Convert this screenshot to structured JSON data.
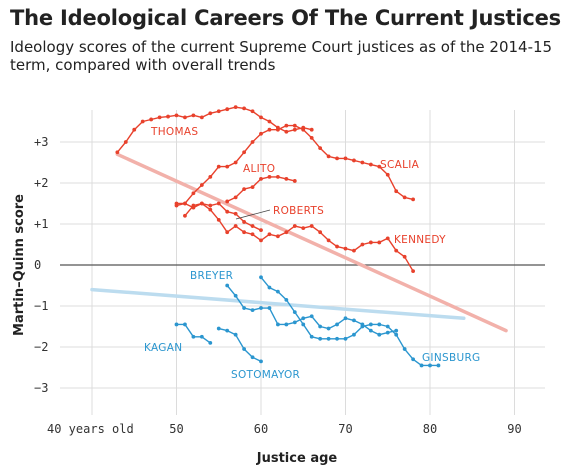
{
  "title": "The Ideological Careers Of The Current Justices",
  "subtitle": "Ideology scores of the current Supreme Court justices as of the 2014-15 term, compared with overall trends",
  "colors": {
    "conservative": "#e8412c",
    "liberal": "#2b96cf",
    "trend_conservative": "#f2b1aa",
    "trend_liberal": "#bcdcef",
    "grid": "#dcdcdc",
    "zero": "#555555"
  },
  "chart_data": {
    "type": "line",
    "title": "The Ideological Careers Of The Current Justices",
    "xlabel": "Justice age",
    "ylabel": "Martin–Quinn score",
    "xlim": [
      40,
      93
    ],
    "ylim": [
      -3.4,
      4.2
    ],
    "x_ticks": [
      40,
      50,
      60,
      70,
      80,
      90
    ],
    "x_tick_labels": [
      "40 years old",
      "50",
      "60",
      "70",
      "80",
      "90"
    ],
    "y_ticks": [
      -3,
      -2,
      -1,
      0,
      1,
      2,
      3
    ],
    "y_tick_labels": [
      "−3",
      "−2",
      "−1",
      "0",
      "+1",
      "+2",
      "+3"
    ],
    "grid": true,
    "series": [
      {
        "name": "THOMAS",
        "group": "conservative",
        "x": [
          43,
          44,
          45,
          46,
          47,
          48,
          49,
          50,
          51,
          52,
          53,
          54,
          55,
          56,
          57,
          58,
          59,
          60,
          61,
          62,
          63,
          64,
          65,
          66
        ],
        "y": [
          2.75,
          3.0,
          3.3,
          3.5,
          3.55,
          3.6,
          3.62,
          3.65,
          3.6,
          3.65,
          3.6,
          3.7,
          3.75,
          3.8,
          3.85,
          3.82,
          3.75,
          3.6,
          3.5,
          3.35,
          3.25,
          3.3,
          3.35,
          3.3
        ]
      },
      {
        "name": "SCALIA",
        "group": "conservative",
        "x": [
          50,
          51,
          52,
          53,
          54,
          55,
          56,
          57,
          58,
          59,
          60,
          61,
          62,
          63,
          64,
          65,
          66,
          67,
          68,
          69,
          70,
          71,
          72,
          73,
          74,
          75,
          76,
          77,
          78
        ],
        "y": [
          1.5,
          1.5,
          1.75,
          1.95,
          2.15,
          2.4,
          2.4,
          2.5,
          2.75,
          3.0,
          3.2,
          3.3,
          3.3,
          3.4,
          3.4,
          3.3,
          3.1,
          2.85,
          2.65,
          2.6,
          2.6,
          2.55,
          2.5,
          2.45,
          2.4,
          2.2,
          1.8,
          1.65,
          1.6
        ]
      },
      {
        "name": "ALITO",
        "group": "conservative",
        "x": [
          56,
          57,
          58,
          59,
          60,
          61,
          62,
          63,
          64
        ],
        "y": [
          1.55,
          1.65,
          1.85,
          1.9,
          2.1,
          2.15,
          2.15,
          2.1,
          2.05
        ]
      },
      {
        "name": "KENNEDY",
        "group": "conservative",
        "x": [
          51,
          52,
          53,
          54,
          55,
          56,
          57,
          58,
          59,
          60,
          61,
          62,
          63,
          64,
          65,
          66,
          67,
          68,
          69,
          70,
          71,
          72,
          73,
          74,
          75,
          76,
          77,
          78
        ],
        "y": [
          1.2,
          1.45,
          1.5,
          1.35,
          1.1,
          0.8,
          0.95,
          0.8,
          0.75,
          0.6,
          0.75,
          0.7,
          0.8,
          0.95,
          0.9,
          0.95,
          0.8,
          0.6,
          0.45,
          0.4,
          0.35,
          0.5,
          0.55,
          0.55,
          0.65,
          0.35,
          0.2,
          -0.15
        ]
      },
      {
        "name": "ROBERTS",
        "group": "conservative",
        "x": [
          50,
          51,
          52,
          53,
          54,
          55,
          56,
          57,
          58,
          59,
          60
        ],
        "y": [
          1.45,
          1.5,
          1.4,
          1.5,
          1.45,
          1.5,
          1.3,
          1.25,
          1.05,
          0.95,
          0.85
        ]
      },
      {
        "name": "BREYER",
        "group": "liberal",
        "x": [
          56,
          57,
          58,
          59,
          60,
          61,
          62,
          63,
          64,
          65,
          66,
          67,
          68,
          69,
          70,
          71,
          72,
          73,
          74,
          75,
          76
        ],
        "y": [
          -0.5,
          -0.75,
          -1.05,
          -1.1,
          -1.05,
          -1.05,
          -1.45,
          -1.45,
          -1.4,
          -1.3,
          -1.25,
          -1.5,
          -1.55,
          -1.45,
          -1.3,
          -1.35,
          -1.45,
          -1.6,
          -1.7,
          -1.65,
          -1.6
        ]
      },
      {
        "name": "GINSBURG",
        "group": "liberal",
        "x": [
          60,
          61,
          62,
          63,
          64,
          65,
          66,
          67,
          68,
          69,
          70,
          71,
          72,
          73,
          74,
          75,
          76,
          77,
          78,
          79,
          80,
          81
        ],
        "y": [
          -0.3,
          -0.55,
          -0.65,
          -0.85,
          -1.15,
          -1.45,
          -1.75,
          -1.8,
          -1.8,
          -1.8,
          -1.8,
          -1.7,
          -1.5,
          -1.45,
          -1.45,
          -1.5,
          -1.7,
          -2.05,
          -2.3,
          -2.45,
          -2.45,
          -2.45
        ]
      },
      {
        "name": "KAGAN",
        "group": "liberal",
        "x": [
          50,
          51,
          52,
          53,
          54
        ],
        "y": [
          -1.45,
          -1.45,
          -1.75,
          -1.75,
          -1.9
        ]
      },
      {
        "name": "SOTOMAYOR",
        "group": "liberal",
        "x": [
          55,
          56,
          57,
          58,
          59,
          60
        ],
        "y": [
          -1.55,
          -1.6,
          -1.7,
          -2.05,
          -2.25,
          -2.35
        ]
      }
    ],
    "trendlines": [
      {
        "group": "conservative",
        "x": [
          43,
          89
        ],
        "y": [
          2.7,
          -1.6
        ]
      },
      {
        "group": "liberal",
        "x": [
          40,
          84
        ],
        "y": [
          -0.6,
          -1.3
        ]
      }
    ]
  }
}
